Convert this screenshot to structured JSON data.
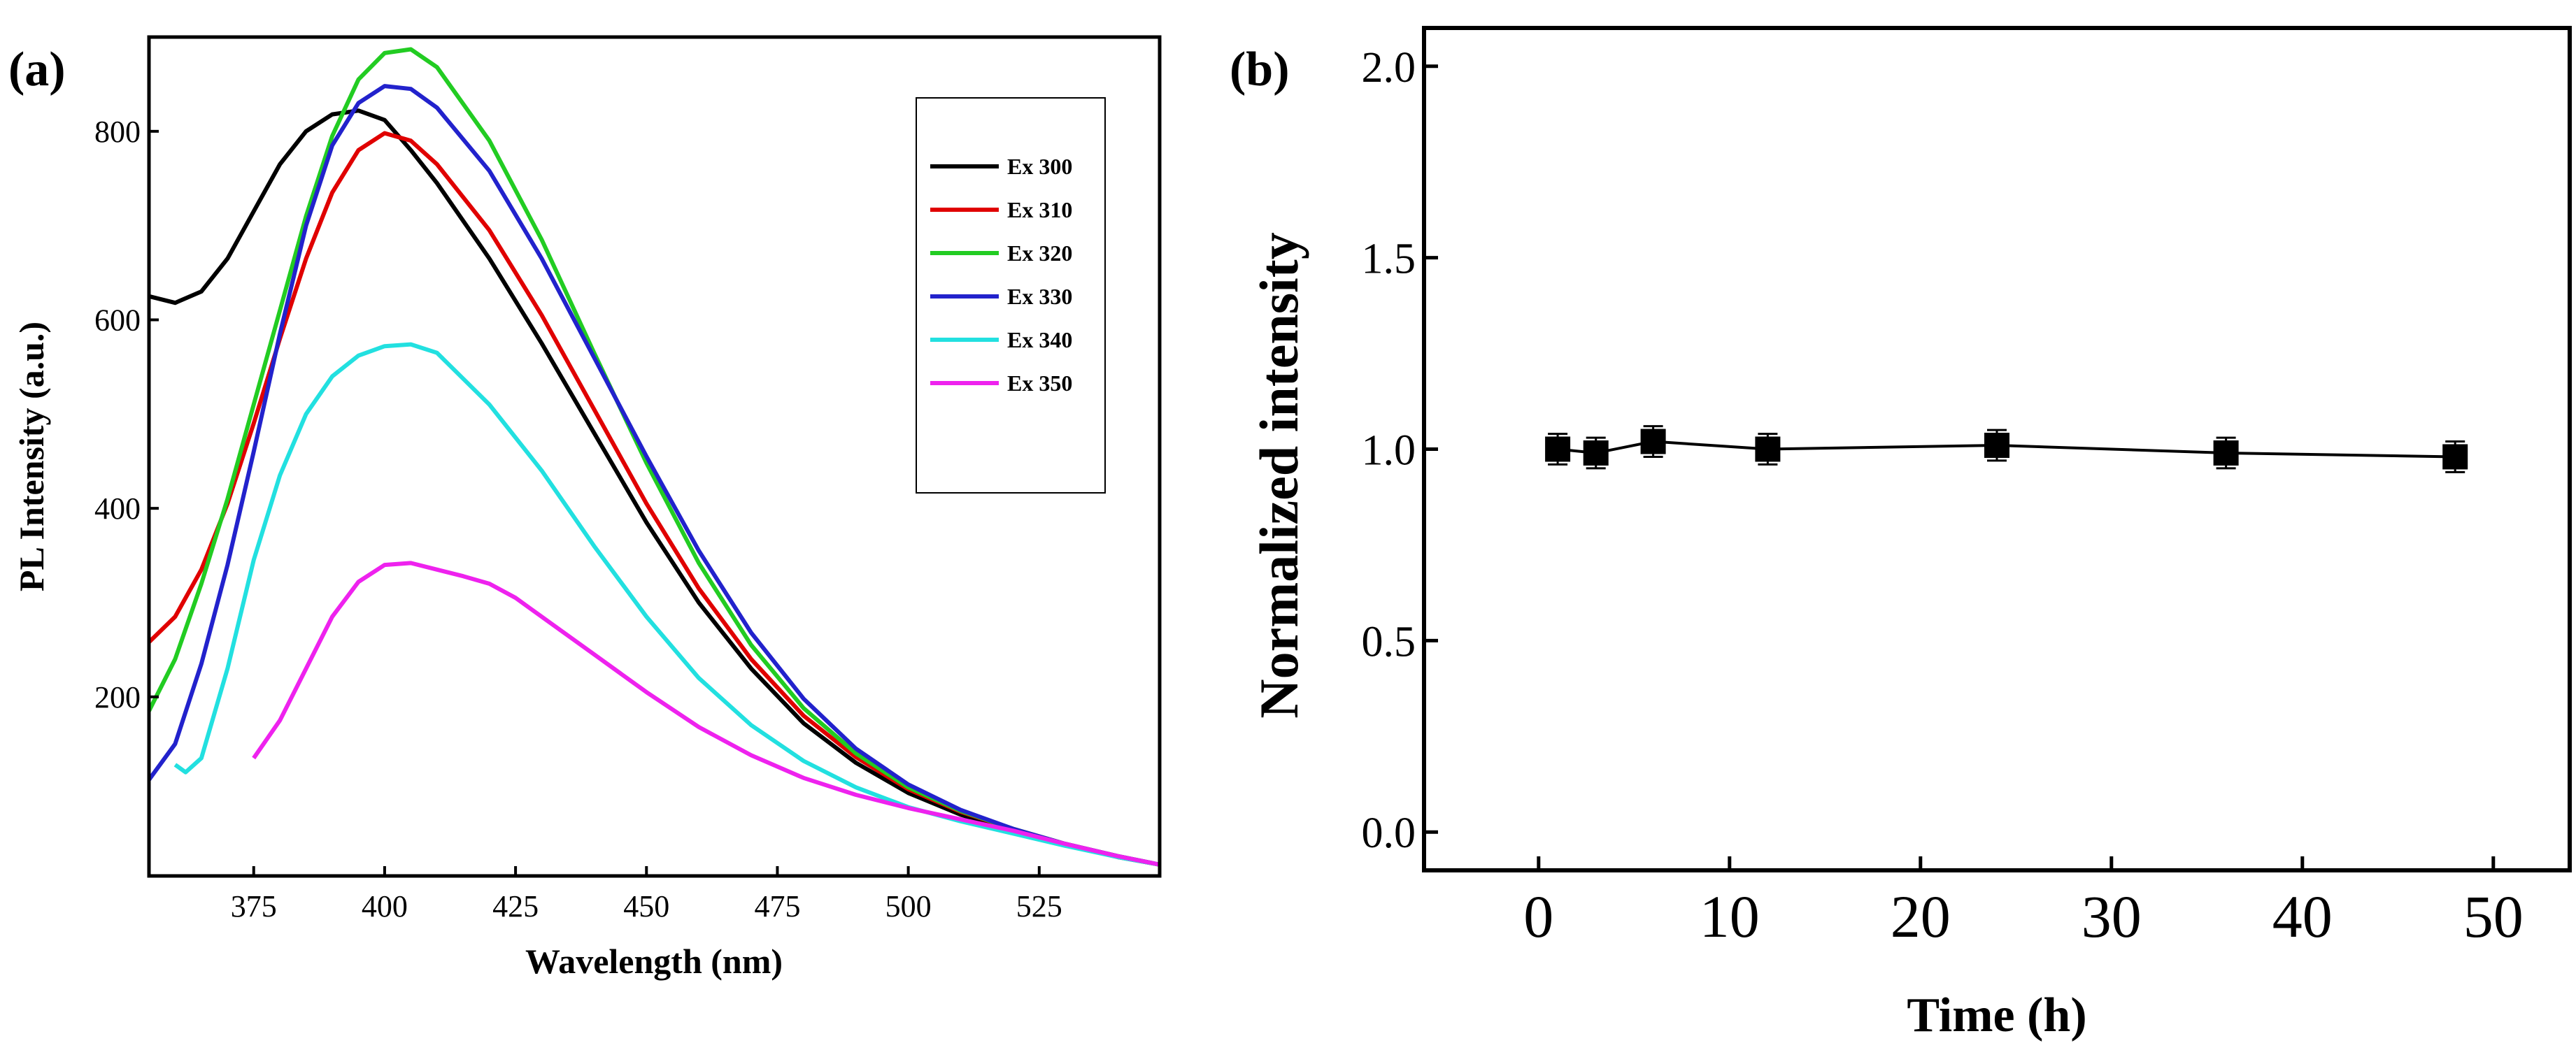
{
  "chart_data": [
    {
      "panel_label": "(a)",
      "type": "line",
      "xlabel": "Wavelength (nm)",
      "ylabel": "PL Intensity (a.u.)",
      "xlim": [
        355,
        548
      ],
      "ylim": [
        10,
        900
      ],
      "xticks": [
        375,
        400,
        425,
        450,
        475,
        500,
        525
      ],
      "yticks": [
        200,
        400,
        600,
        800
      ],
      "legend_position": "top-right",
      "series": [
        {
          "name": "Ex 300",
          "color": "#000000",
          "x": [
            355,
            360,
            365,
            370,
            375,
            380,
            385,
            390,
            395,
            400,
            405,
            410,
            420,
            430,
            440,
            450,
            460,
            470,
            480,
            490,
            500,
            510,
            520,
            530,
            540,
            548
          ],
          "y": [
            625,
            618,
            630,
            665,
            715,
            765,
            800,
            818,
            822,
            812,
            780,
            745,
            665,
            575,
            480,
            385,
            300,
            230,
            172,
            130,
            98,
            75,
            58,
            43,
            30,
            22
          ]
        },
        {
          "name": "Ex 310",
          "color": "#e00000",
          "x": [
            355,
            360,
            365,
            370,
            375,
            380,
            385,
            390,
            395,
            400,
            405,
            410,
            420,
            430,
            440,
            450,
            460,
            470,
            480,
            490,
            500,
            510,
            520,
            530,
            540,
            548
          ],
          "y": [
            258,
            285,
            335,
            405,
            490,
            580,
            665,
            735,
            780,
            798,
            790,
            765,
            695,
            605,
            505,
            405,
            315,
            240,
            180,
            136,
            102,
            78,
            60,
            44,
            31,
            22
          ]
        },
        {
          "name": "Ex 320",
          "color": "#22cc22",
          "x": [
            355,
            360,
            365,
            370,
            375,
            380,
            385,
            390,
            395,
            400,
            405,
            410,
            420,
            430,
            440,
            450,
            460,
            470,
            480,
            490,
            500,
            510,
            520,
            530,
            540,
            548
          ],
          "y": [
            185,
            240,
            320,
            410,
            510,
            610,
            710,
            795,
            855,
            883,
            887,
            868,
            790,
            685,
            565,
            448,
            342,
            255,
            188,
            140,
            104,
            79,
            60,
            44,
            31,
            22
          ]
        },
        {
          "name": "Ex 330",
          "color": "#2222cc",
          "x": [
            355,
            360,
            365,
            370,
            375,
            380,
            385,
            390,
            395,
            400,
            405,
            410,
            420,
            430,
            440,
            450,
            460,
            470,
            480,
            490,
            500,
            510,
            520,
            530,
            540,
            548
          ],
          "y": [
            112,
            150,
            235,
            340,
            460,
            585,
            700,
            785,
            830,
            848,
            845,
            825,
            758,
            665,
            560,
            455,
            355,
            268,
            198,
            145,
            107,
            80,
            60,
            44,
            31,
            22
          ]
        },
        {
          "name": "Ex 340",
          "color": "#22e0e0",
          "x": [
            360,
            362,
            365,
            370,
            375,
            380,
            385,
            390,
            395,
            400,
            405,
            410,
            420,
            430,
            440,
            450,
            460,
            470,
            480,
            490,
            500,
            510,
            520,
            530,
            540,
            548
          ],
          "y": [
            128,
            120,
            135,
            230,
            345,
            435,
            500,
            540,
            562,
            572,
            574,
            565,
            510,
            440,
            360,
            285,
            220,
            170,
            132,
            104,
            83,
            68,
            55,
            42,
            30,
            22
          ]
        },
        {
          "name": "Ex 350",
          "color": "#ee22ee",
          "x": [
            375,
            380,
            385,
            390,
            395,
            400,
            405,
            410,
            415,
            420,
            425,
            430,
            440,
            450,
            460,
            470,
            480,
            490,
            500,
            510,
            520,
            530,
            540,
            548
          ],
          "y": [
            135,
            175,
            230,
            285,
            322,
            340,
            342,
            335,
            328,
            320,
            305,
            285,
            245,
            205,
            168,
            138,
            114,
            96,
            82,
            70,
            58,
            44,
            31,
            22
          ]
        }
      ]
    },
    {
      "panel_label": "(b)",
      "type": "scatter",
      "xlabel": "Time (h)",
      "ylabel": "Normalized intensity",
      "xlim": [
        -6,
        54
      ],
      "ylim": [
        -0.1,
        2.1
      ],
      "xticks": [
        0,
        10,
        20,
        30,
        40,
        50
      ],
      "yticks": [
        0.0,
        0.5,
        1.0,
        1.5,
        2.0
      ],
      "ytick_labels": [
        "0.0",
        "0.5",
        "1.0",
        "1.5",
        "2.0"
      ],
      "series": [
        {
          "name": "Normalized intensity",
          "color": "#000000",
          "x": [
            1,
            3,
            6,
            12,
            24,
            36,
            48
          ],
          "y": [
            1.0,
            0.99,
            1.02,
            1.0,
            1.01,
            0.99,
            0.98
          ],
          "error": [
            0.04,
            0.04,
            0.04,
            0.04,
            0.04,
            0.04,
            0.04
          ]
        }
      ]
    }
  ]
}
